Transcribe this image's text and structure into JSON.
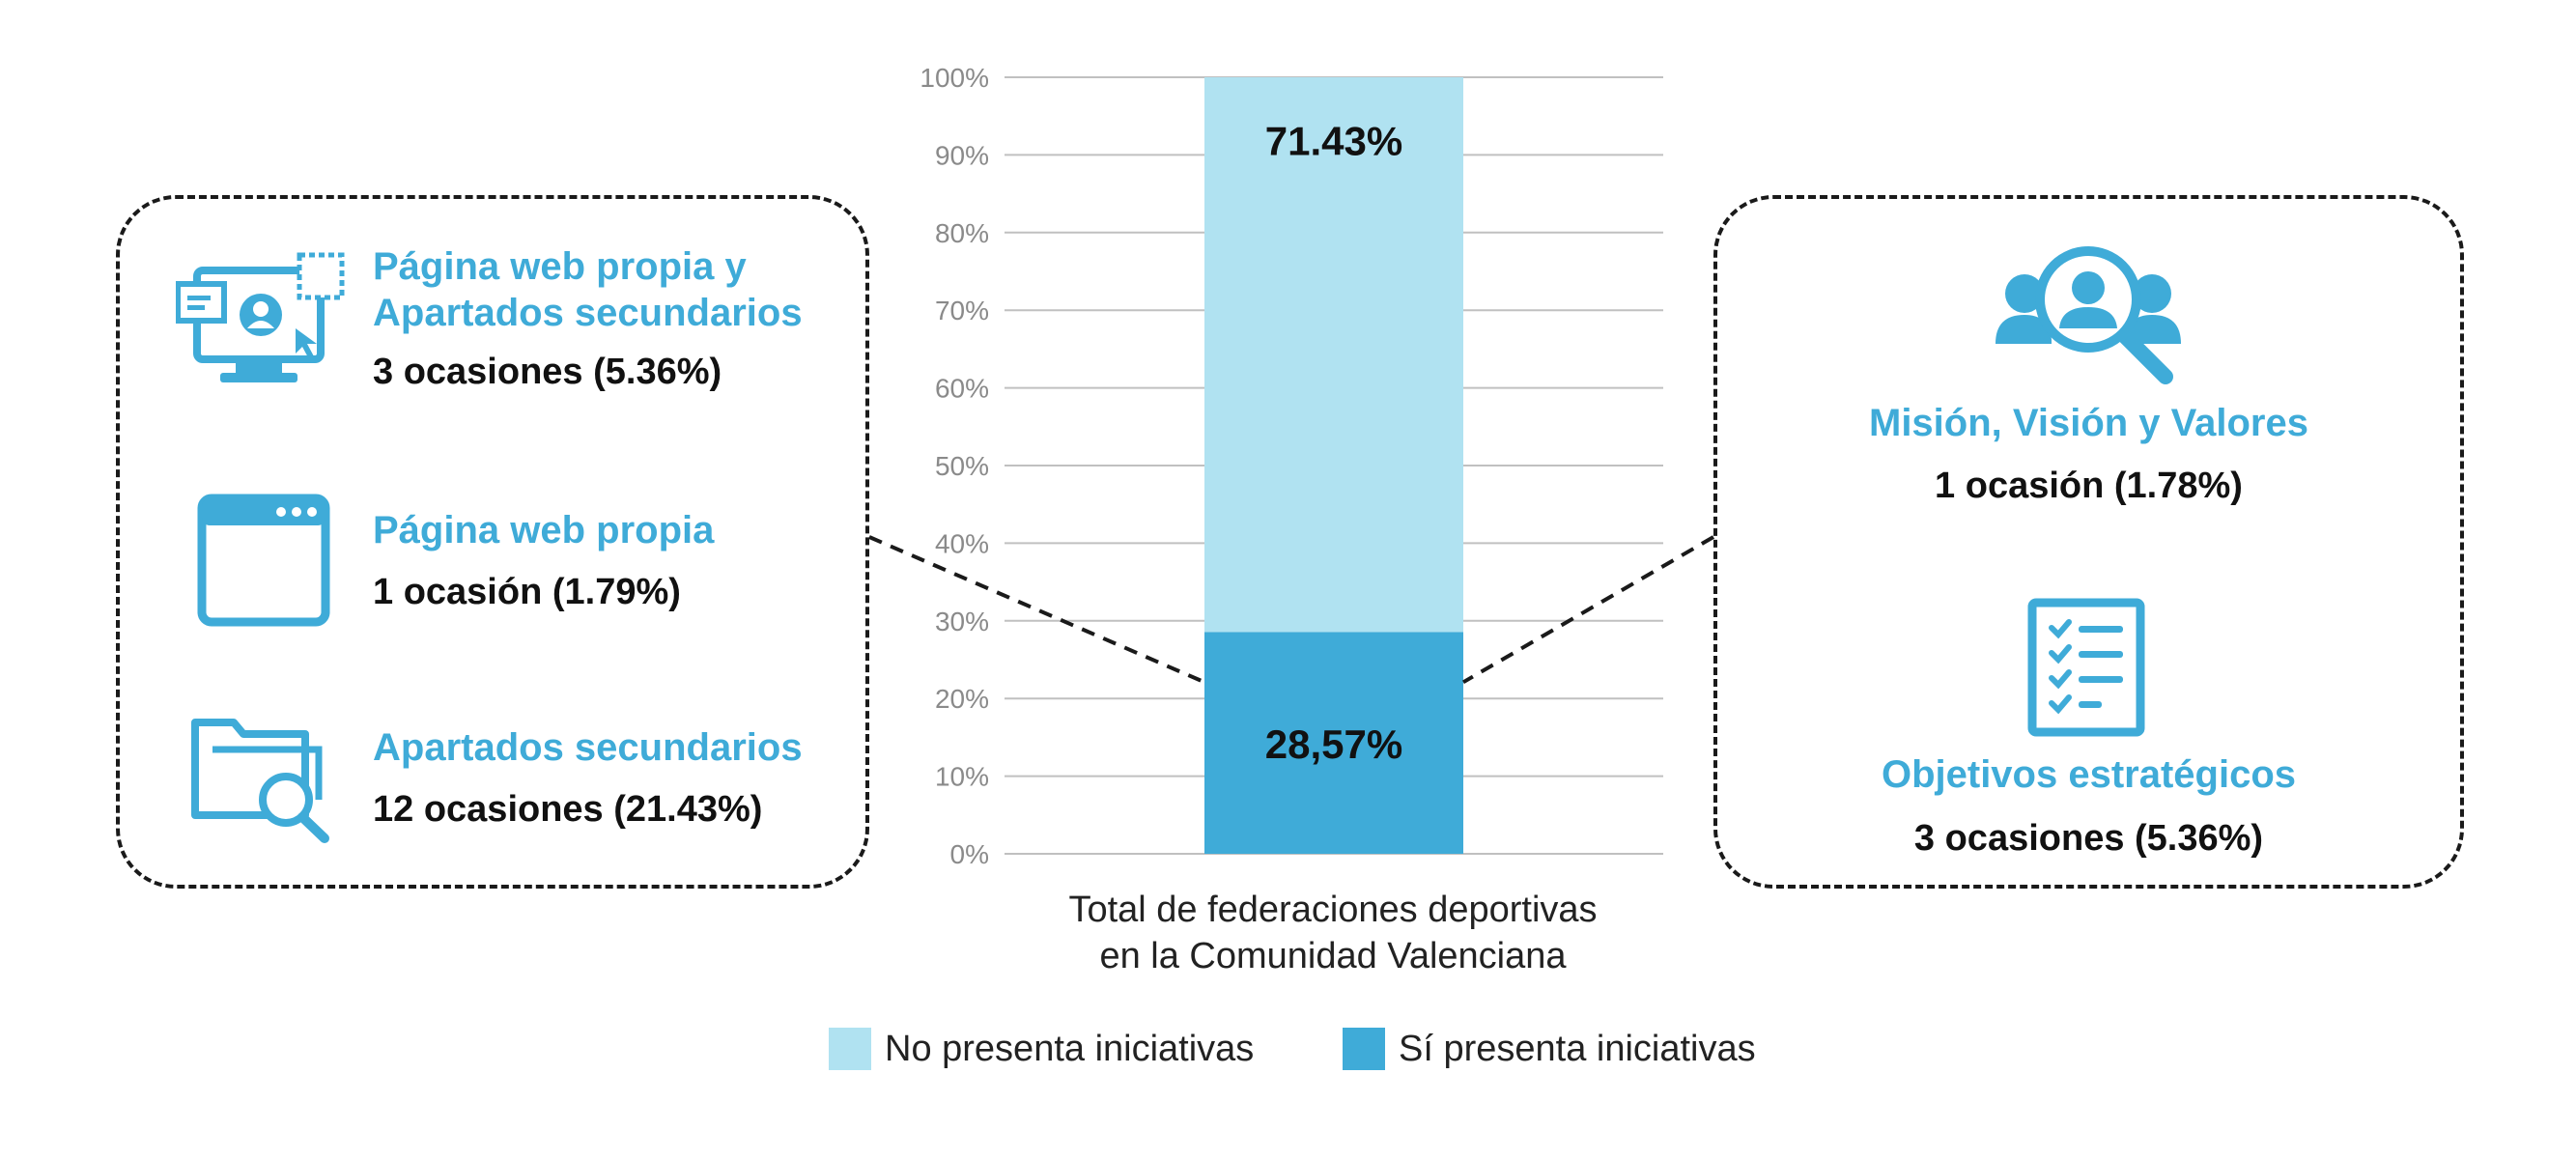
{
  "chart_data": {
    "type": "bar",
    "stacked": true,
    "categories": [
      "Total de federaciones deportivas en la Comunidad Valenciana"
    ],
    "category_label_lines": [
      "Total de federaciones deportivas",
      "en la Comunidad Valenciana"
    ],
    "series": [
      {
        "name": "Sí presenta iniciativas",
        "values": [
          28.57
        ],
        "label": "28,57%",
        "color": "#3fabd8"
      },
      {
        "name": "No presenta iniciativas",
        "values": [
          71.43
        ],
        "label": "71.43%",
        "color": "#b0e2f1"
      }
    ],
    "y_ticks": [
      "0%",
      "10%",
      "20%",
      "30%",
      "40%",
      "50%",
      "60%",
      "70%",
      "80%",
      "90%",
      "100%"
    ],
    "ylim": [
      0,
      100
    ],
    "grid": true,
    "legend_position": "bottom",
    "legend": [
      {
        "label": "No presenta iniciativas",
        "color": "#b0e2f1"
      },
      {
        "label": "Sí presenta iniciativas",
        "color": "#3fabd8"
      }
    ]
  },
  "left_panel": {
    "items": [
      {
        "icon": "web-page-profile-icon",
        "title_lines": [
          "Página web propia y",
          "Apartados secundarios"
        ],
        "occurrences": "3 ocasiones (5.36%)"
      },
      {
        "icon": "browser-window-icon",
        "title_lines": [
          "Página web propia"
        ],
        "occurrences": "1 ocasión (1.79%)"
      },
      {
        "icon": "folder-search-icon",
        "title_lines": [
          "Apartados secundarios"
        ],
        "occurrences": "12 ocasiones (21.43%)"
      }
    ]
  },
  "right_panel": {
    "items": [
      {
        "icon": "people-search-icon",
        "title_lines": [
          "Misión, Visión y Valores"
        ],
        "occurrences": "1 ocasión (1.78%)"
      },
      {
        "icon": "checklist-icon",
        "title_lines": [
          "Objetivos estratégicos"
        ],
        "occurrences": "3 ocasiones (5.36%)"
      }
    ]
  },
  "colors": {
    "accent": "#3fabd8",
    "light": "#b0e2f1",
    "grid": "#c0c0c0",
    "dash": "#1a1a1a"
  }
}
